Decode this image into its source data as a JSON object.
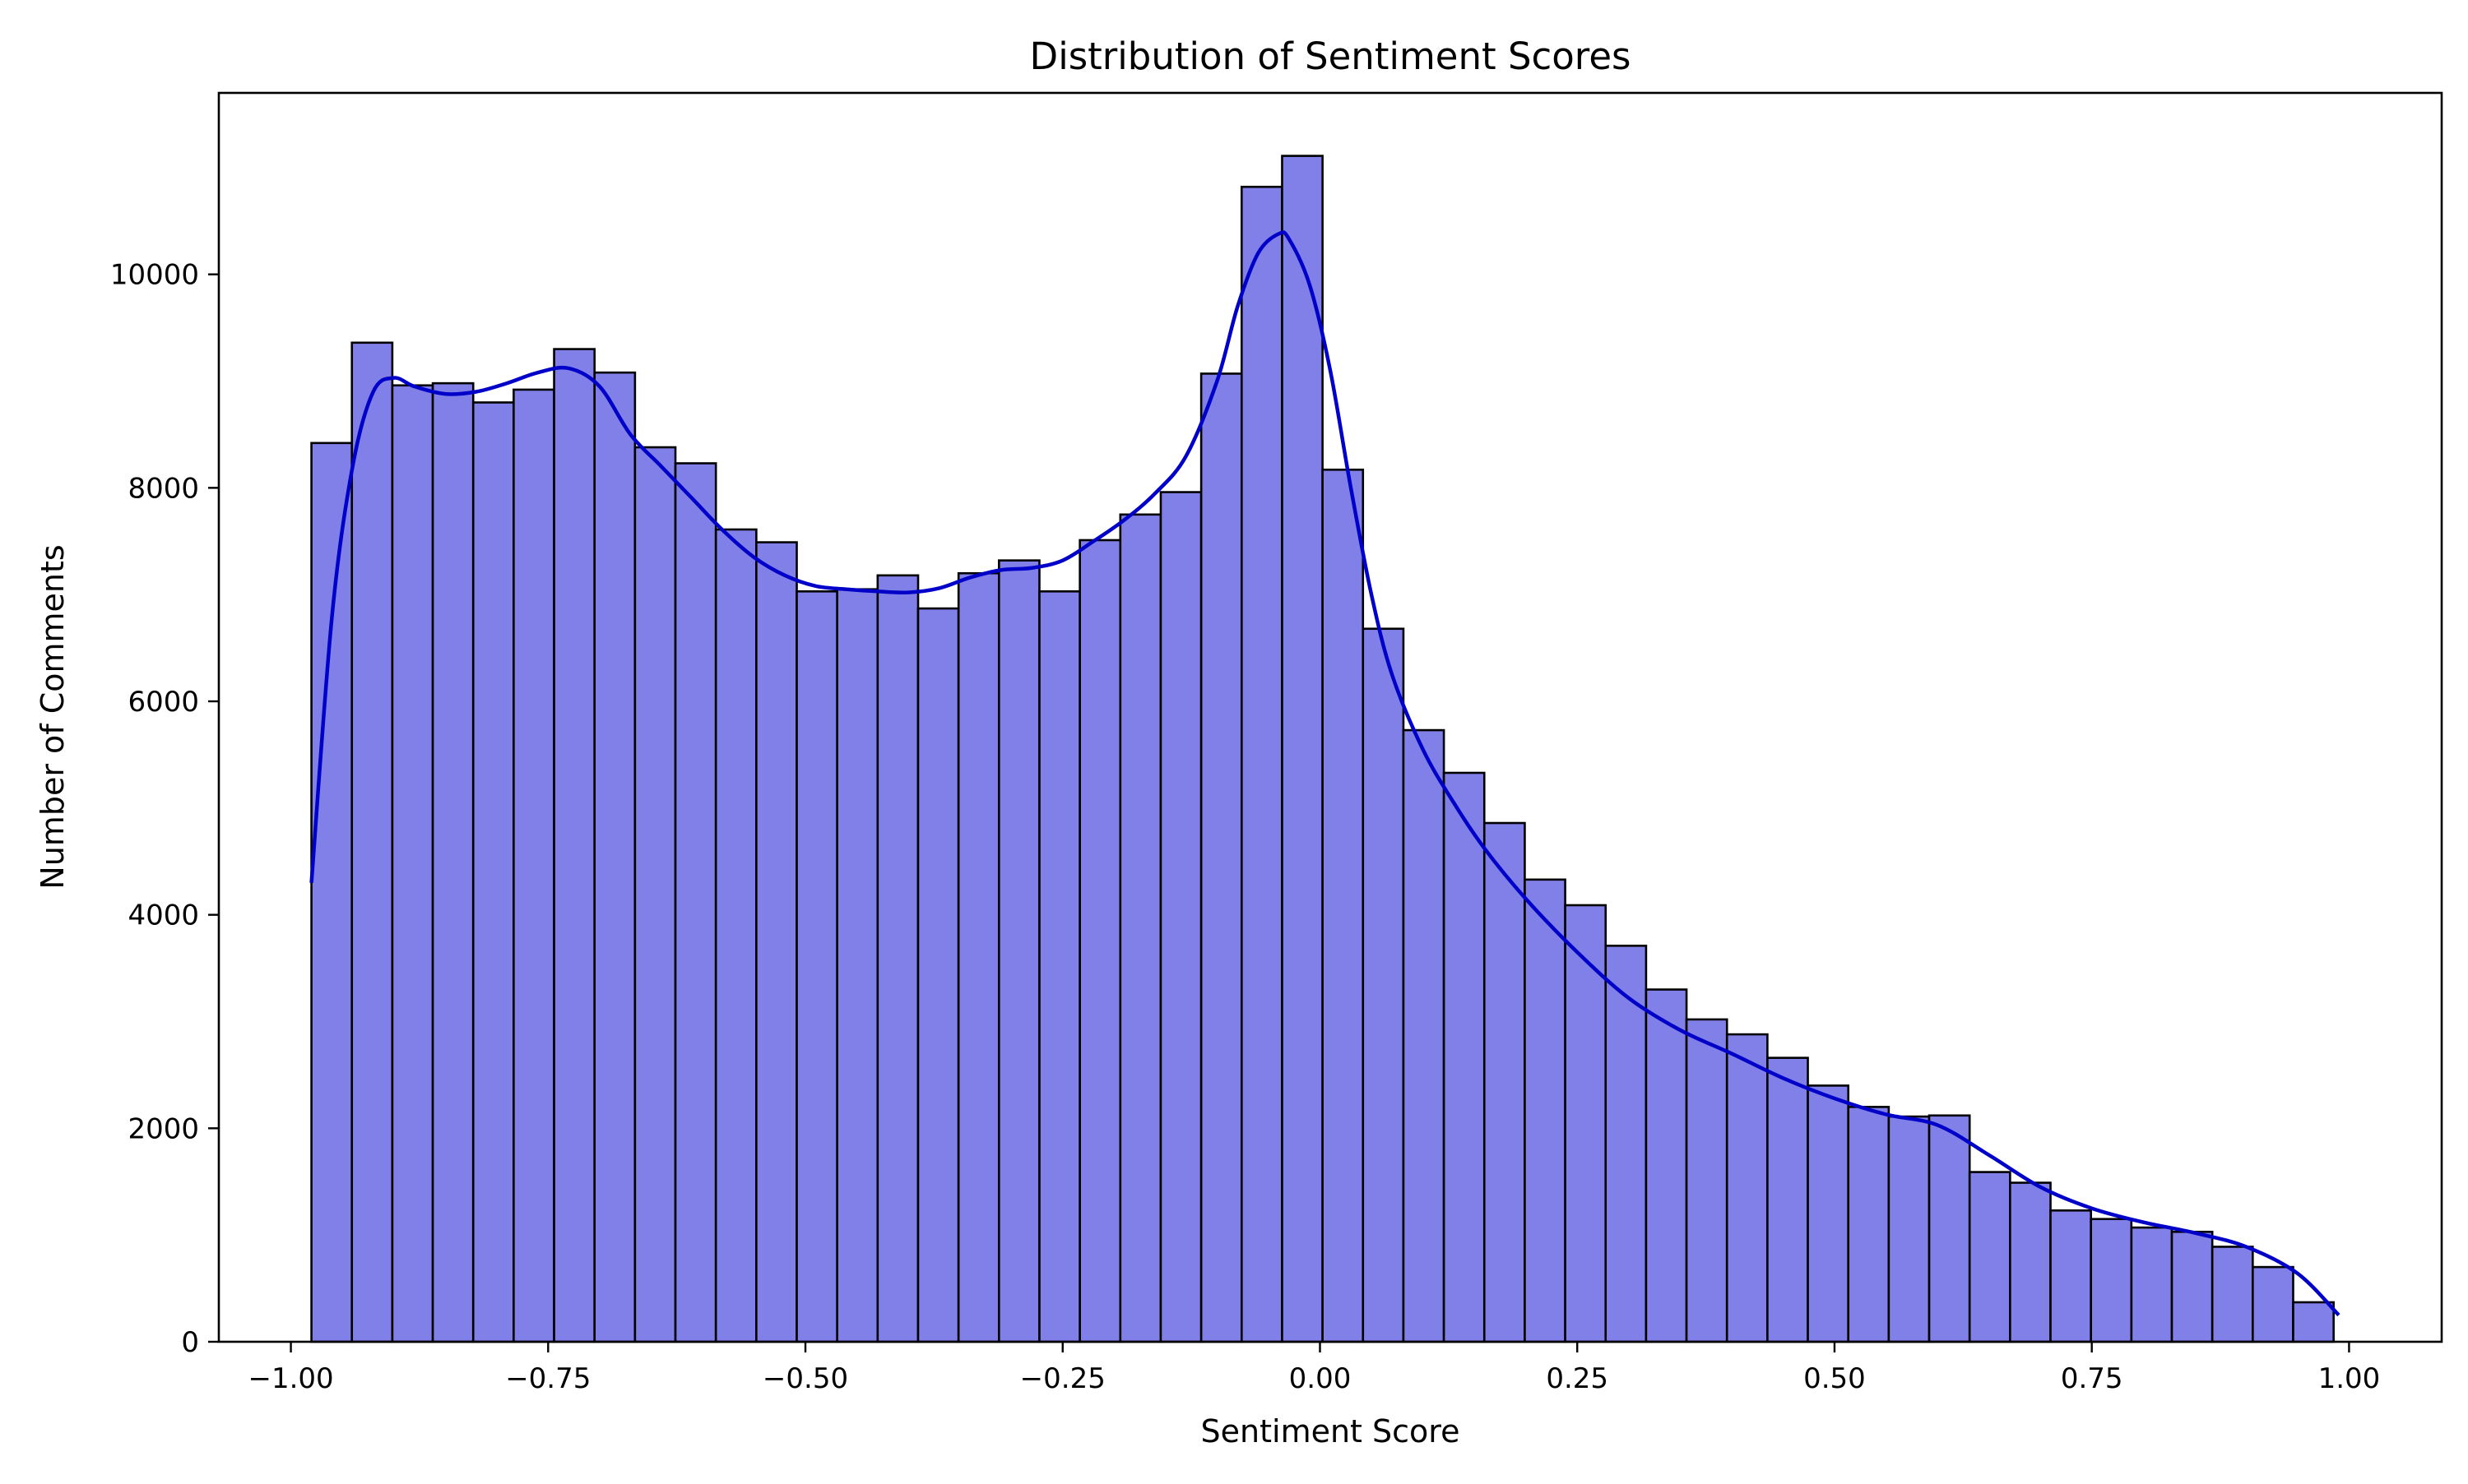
{
  "chart_data": {
    "type": "bar",
    "subtype": "histogram_with_kde",
    "title": "Distribution of Sentiment Scores",
    "xlabel": "Sentiment Score",
    "ylabel": "Number of Comments",
    "xlim": [
      -1.07,
      1.09
    ],
    "ylim": [
      0,
      11700
    ],
    "x_ticks": [
      -1.0,
      -0.75,
      -0.5,
      -0.25,
      0.0,
      0.25,
      0.5,
      0.75,
      1.0
    ],
    "x_tick_labels": [
      "−1.00",
      "−0.75",
      "−0.50",
      "−0.25",
      "0.00",
      "0.25",
      "0.50",
      "0.75",
      "1.00"
    ],
    "y_ticks": [
      0,
      2000,
      4000,
      6000,
      8000,
      10000
    ],
    "y_tick_labels": [
      "0",
      "2000",
      "4000",
      "6000",
      "8000",
      "10000"
    ],
    "grid": false,
    "bar_fill_color": "#8080e8",
    "bar_edge_color": "#000000",
    "kde_color": "#0000c8",
    "bins": {
      "start": -0.98,
      "width": 0.0393,
      "counts": [
        8420,
        9360,
        8960,
        8980,
        8800,
        8920,
        9300,
        9080,
        8380,
        8230,
        7610,
        7490,
        7030,
        7050,
        7180,
        6870,
        7200,
        7320,
        7030,
        7510,
        7750,
        7960,
        9070,
        10820,
        11110,
        8170,
        6680,
        5730,
        5330,
        4860,
        4330,
        4090,
        3710,
        3300,
        3020,
        2880,
        2660,
        2400,
        2200,
        2110,
        2120,
        1590,
        1490,
        1230,
        1150,
        1070,
        1030,
        890,
        700,
        370
      ]
    },
    "kde": {
      "x": [
        -0.98,
        -0.96,
        -0.94,
        -0.92,
        -0.9,
        -0.88,
        -0.85,
        -0.82,
        -0.79,
        -0.76,
        -0.73,
        -0.7,
        -0.67,
        -0.64,
        -0.61,
        -0.58,
        -0.55,
        -0.52,
        -0.49,
        -0.46,
        -0.43,
        -0.4,
        -0.37,
        -0.34,
        -0.31,
        -0.28,
        -0.25,
        -0.22,
        -0.19,
        -0.16,
        -0.13,
        -0.1,
        -0.08,
        -0.06,
        -0.04,
        -0.03,
        -0.01,
        0.01,
        0.03,
        0.05,
        0.07,
        0.1,
        0.13,
        0.16,
        0.2,
        0.25,
        0.3,
        0.35,
        0.4,
        0.45,
        0.5,
        0.55,
        0.6,
        0.65,
        0.7,
        0.75,
        0.8,
        0.85,
        0.9,
        0.95,
        0.99
      ],
      "y": [
        4300,
        6800,
        8200,
        8900,
        9030,
        8950,
        8880,
        8900,
        8980,
        9080,
        9120,
        8950,
        8500,
        8200,
        7900,
        7600,
        7350,
        7180,
        7080,
        7050,
        7030,
        7020,
        7060,
        7160,
        7230,
        7250,
        7320,
        7500,
        7700,
        7950,
        8300,
        9000,
        9700,
        10200,
        10380,
        10330,
        9900,
        9100,
        8000,
        7000,
        6250,
        5550,
        5050,
        4620,
        4150,
        3650,
        3220,
        2920,
        2700,
        2470,
        2280,
        2130,
        2030,
        1750,
        1450,
        1250,
        1120,
        1020,
        890,
        640,
        250
      ]
    }
  }
}
